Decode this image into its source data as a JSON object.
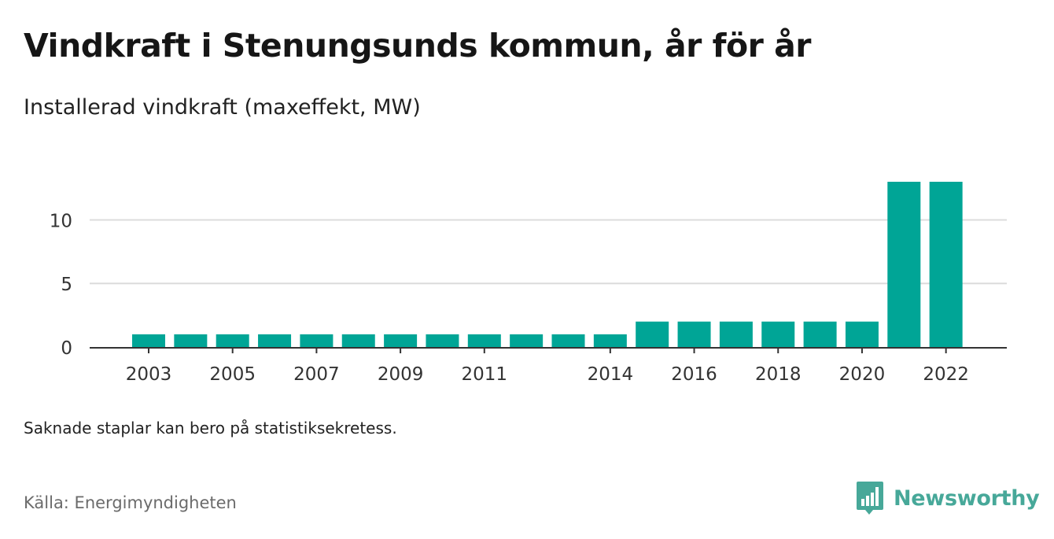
{
  "header": {
    "title": "Vindkraft i Stenungsunds kommun, år för år",
    "subtitle": "Installerad vindkraft (maxeffekt, MW)"
  },
  "footer": {
    "note": "Saknade staplar kan bero på statistiksekretess.",
    "source": "Källa: Energimyndigheten",
    "brand": "Newsworthy"
  },
  "colors": {
    "bar": "#00a596",
    "grid": "#dcdcdc",
    "axis": "#333333",
    "brand": "#47a899"
  },
  "brand_icon": "bar-chart-speech-bubble-icon",
  "chart_data": {
    "type": "bar",
    "title": "Vindkraft i Stenungsunds kommun, år för år",
    "subtitle": "Installerad vindkraft (maxeffekt, MW)",
    "xlabel": "",
    "ylabel": "",
    "categories": [
      "2003",
      "2004",
      "2005",
      "2006",
      "2007",
      "2008",
      "2009",
      "2010",
      "2011",
      "2012",
      "2013",
      "2014",
      "2015",
      "2016",
      "2017",
      "2018",
      "2019",
      "2020",
      "2021",
      "2022"
    ],
    "values": [
      1,
      1,
      1,
      1,
      1,
      1,
      1,
      1,
      1,
      1,
      1,
      1,
      2,
      2,
      2,
      2,
      2,
      2,
      13,
      13
    ],
    "x_tick_labels": [
      "2003",
      "2005",
      "2007",
      "2009",
      "2011",
      "2014",
      "2016",
      "2018",
      "2020",
      "2022"
    ],
    "y_ticks": [
      0,
      5,
      10
    ],
    "ylim": [
      0,
      13
    ],
    "grid": true,
    "legend": "none"
  }
}
